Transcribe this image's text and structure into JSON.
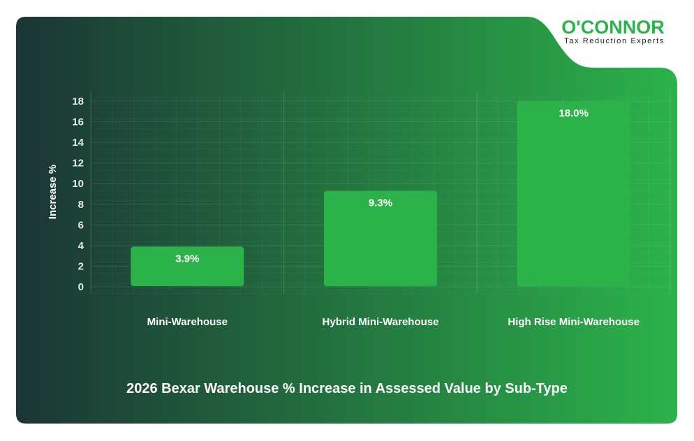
{
  "logo": {
    "name": "O'CONNOR",
    "tagline": "Tax Reduction Experts"
  },
  "colors": {
    "bar": "#2bb34a",
    "bg_left": "#1b3535",
    "bg_right": "#2bb34a",
    "brand": "#2bb34a"
  },
  "chart_data": {
    "type": "bar",
    "title": "2026 Bexar Warehouse % Increase in Assessed Value by Sub-Type",
    "ylabel": "Increase %",
    "xlabel": "",
    "ylim": [
      0,
      18
    ],
    "yticks": [
      0,
      2,
      4,
      6,
      8,
      10,
      12,
      14,
      16,
      18
    ],
    "grid": true,
    "categories": [
      "Mini-Warehouse",
      "Hybrid Mini-Warehouse",
      "High Rise Mini-Warehouse"
    ],
    "values": [
      3.9,
      9.3,
      18.0
    ],
    "data_labels": [
      "3.9%",
      "9.3%",
      "18.0%"
    ]
  }
}
